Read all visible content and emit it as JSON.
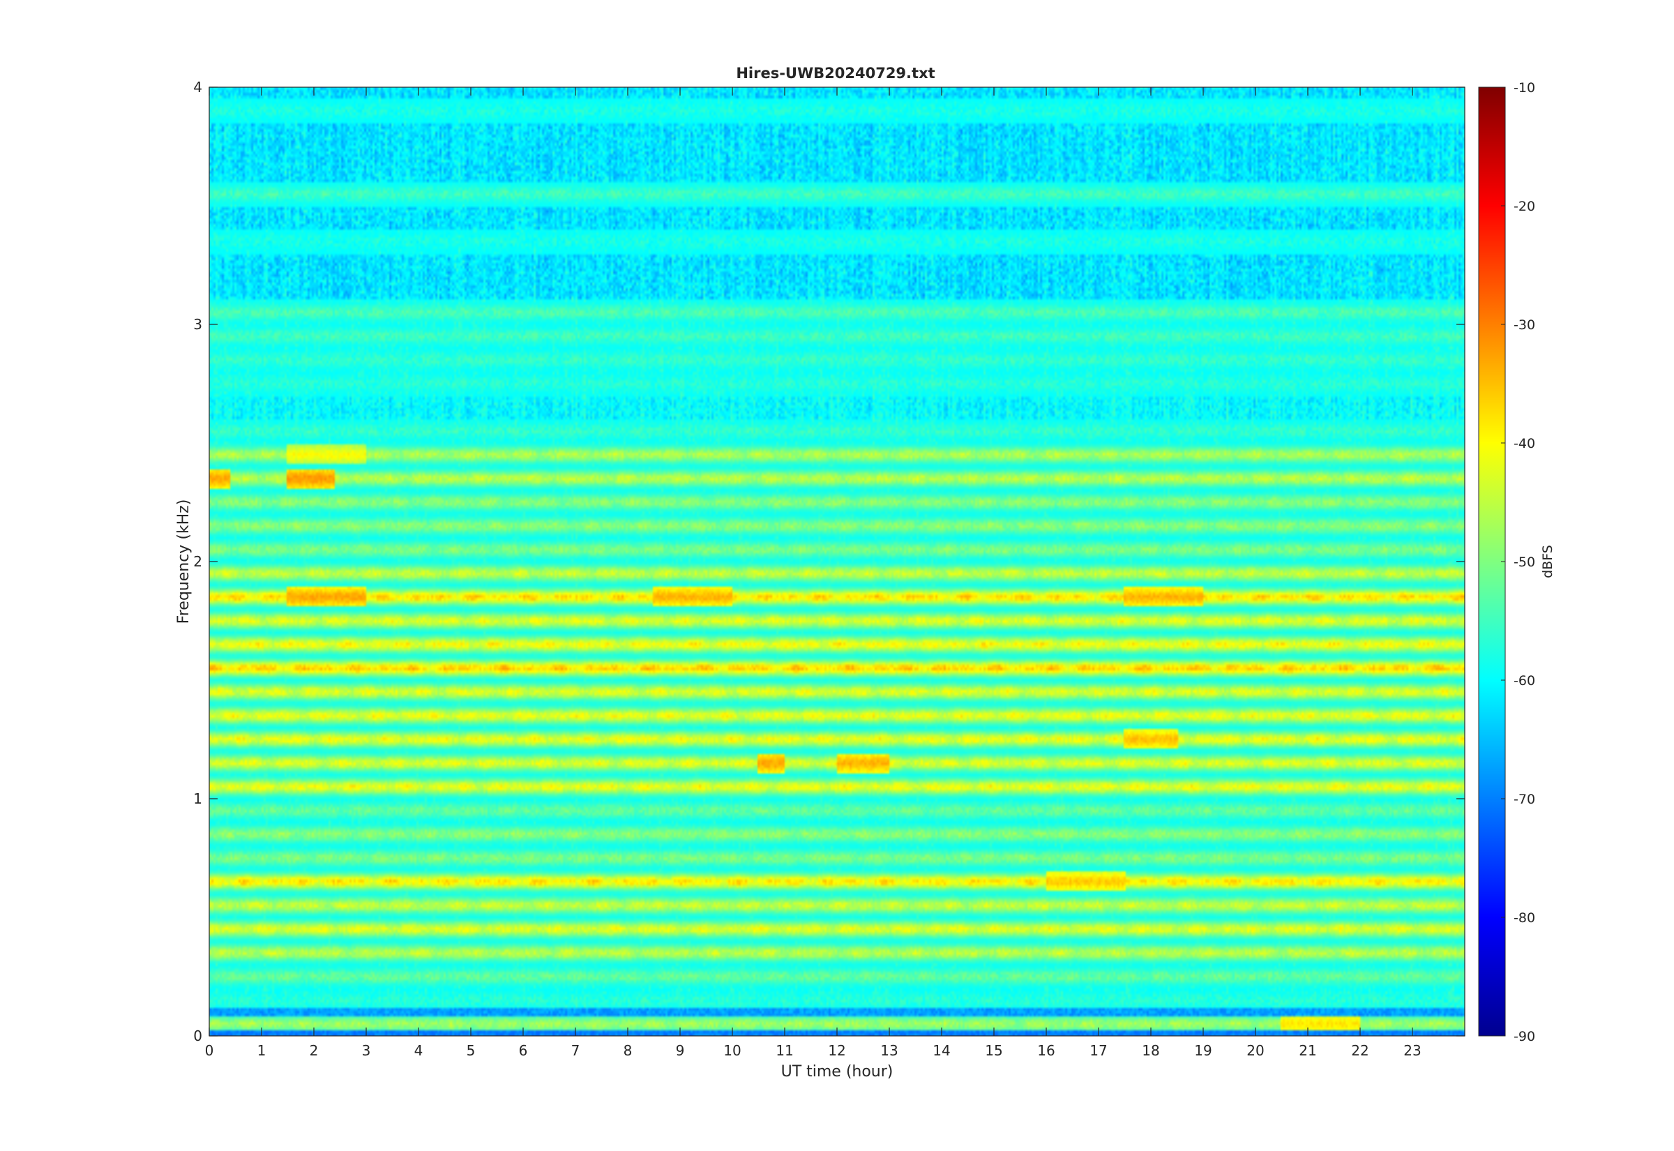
{
  "chart_data": {
    "type": "heatmap",
    "title": "Hires-UWB20240729.txt",
    "xlabel": "UT time (hour)",
    "ylabel": "Frequency (kHz)",
    "xlim": [
      0,
      24
    ],
    "ylim": [
      0,
      4
    ],
    "x_ticks": [
      0,
      1,
      2,
      3,
      4,
      5,
      6,
      7,
      8,
      9,
      10,
      11,
      12,
      13,
      14,
      15,
      16,
      17,
      18,
      19,
      20,
      21,
      22,
      23
    ],
    "y_ticks": [
      0,
      1,
      2,
      3,
      4
    ],
    "colorbar": {
      "label": "dBFS",
      "range": [
        -90,
        -10
      ],
      "ticks": [
        -90,
        -80,
        -70,
        -60,
        -50,
        -40,
        -30,
        -20,
        -10
      ],
      "colormap": "jet"
    },
    "baseline_db": -60,
    "bands_khz": [
      {
        "f": 0.05,
        "db": -47
      },
      {
        "f": 0.15,
        "db": -57
      },
      {
        "f": 0.25,
        "db": -52
      },
      {
        "f": 0.35,
        "db": -45
      },
      {
        "f": 0.45,
        "db": -42
      },
      {
        "f": 0.55,
        "db": -44
      },
      {
        "f": 0.65,
        "db": -38
      },
      {
        "f": 0.75,
        "db": -50
      },
      {
        "f": 0.85,
        "db": -49
      },
      {
        "f": 0.95,
        "db": -52
      },
      {
        "f": 1.05,
        "db": -41
      },
      {
        "f": 1.15,
        "db": -42
      },
      {
        "f": 1.25,
        "db": -41
      },
      {
        "f": 1.35,
        "db": -41
      },
      {
        "f": 1.45,
        "db": -42
      },
      {
        "f": 1.55,
        "db": -36
      },
      {
        "f": 1.65,
        "db": -40
      },
      {
        "f": 1.75,
        "db": -42
      },
      {
        "f": 1.85,
        "db": -37
      },
      {
        "f": 1.95,
        "db": -44
      },
      {
        "f": 2.05,
        "db": -50
      },
      {
        "f": 2.15,
        "db": -49
      },
      {
        "f": 2.25,
        "db": -49
      },
      {
        "f": 2.35,
        "db": -45
      },
      {
        "f": 2.45,
        "db": -46
      },
      {
        "f": 2.55,
        "db": -56
      },
      {
        "f": 2.75,
        "db": -57
      },
      {
        "f": 2.85,
        "db": -56
      },
      {
        "f": 2.95,
        "db": -55
      },
      {
        "f": 3.05,
        "db": -54
      },
      {
        "f": 3.35,
        "db": -58
      },
      {
        "f": 3.55,
        "db": -55
      },
      {
        "f": 3.9,
        "db": -58
      }
    ],
    "hotspots": [
      {
        "t0": 1.5,
        "t1": 2.4,
        "f": 2.35,
        "db": -32
      },
      {
        "t0": 0.0,
        "t1": 0.4,
        "f": 2.35,
        "db": -33
      },
      {
        "t0": 1.5,
        "t1": 3.0,
        "f": 1.85,
        "db": -33
      },
      {
        "t0": 8.5,
        "t1": 10.0,
        "f": 1.85,
        "db": -34
      },
      {
        "t0": 17.5,
        "t1": 19.0,
        "f": 1.85,
        "db": -34
      },
      {
        "t0": 10.5,
        "t1": 11.0,
        "f": 1.15,
        "db": -33
      },
      {
        "t0": 12.0,
        "t1": 13.0,
        "f": 1.15,
        "db": -34
      },
      {
        "t0": 17.5,
        "t1": 18.5,
        "f": 1.25,
        "db": -35
      },
      {
        "t0": 16.0,
        "t1": 17.5,
        "f": 0.65,
        "db": -36
      },
      {
        "t0": 20.5,
        "t1": 22.0,
        "f": 0.05,
        "db": -38
      },
      {
        "t0": 1.5,
        "t1": 3.0,
        "f": 2.45,
        "db": -40
      }
    ]
  }
}
